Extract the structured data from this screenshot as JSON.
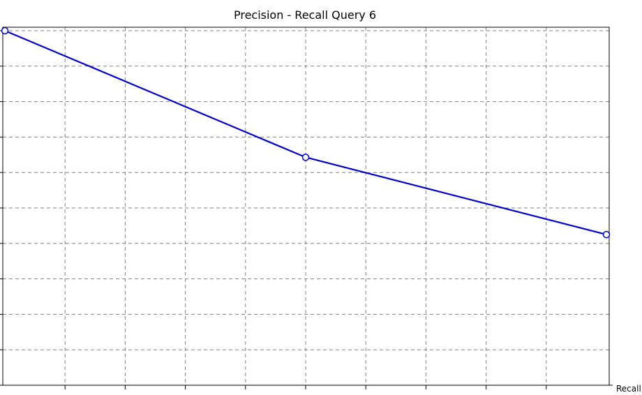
{
  "chart_data": {
    "type": "line",
    "title": "Precision - Recall Query 6",
    "xlabel": "Recall",
    "ylabel": "",
    "xlim": [
      0,
      1
    ],
    "ylim": [
      0,
      1
    ],
    "grid": true,
    "series": [
      {
        "color": "#0000cc",
        "x": [
          0.0,
          0.5,
          1.0
        ],
        "y": [
          1.0,
          0.643,
          0.425
        ]
      }
    ]
  }
}
